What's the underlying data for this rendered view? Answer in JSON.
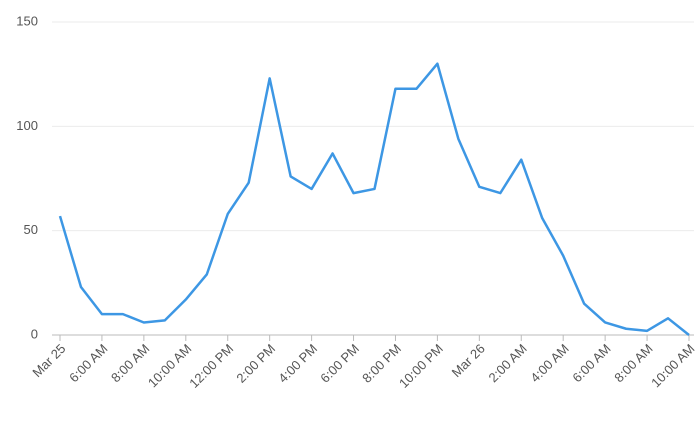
{
  "chart_data": {
    "type": "line",
    "categories": [
      "Mar 25",
      null,
      "6:00 AM",
      null,
      "8:00 AM",
      null,
      "10:00 AM",
      null,
      "12:00 PM",
      null,
      "2:00 PM",
      null,
      "4:00 PM",
      null,
      "6:00 PM",
      null,
      "8:00 PM",
      null,
      "10:00 PM",
      null,
      "Mar 26",
      null,
      "2:00 AM",
      null,
      "4:00 AM",
      null,
      "6:00 AM",
      null,
      "8:00 AM",
      null,
      "10:00 AM"
    ],
    "series": [
      {
        "color": "#3d97e4",
        "values": [
          57,
          23,
          10,
          10,
          6,
          7,
          17,
          29,
          58,
          73,
          123,
          76,
          70,
          87,
          68,
          70,
          118,
          118,
          130,
          94,
          71,
          68,
          84,
          56,
          38,
          15,
          6,
          3,
          2,
          8,
          0
        ]
      }
    ],
    "ylim": [
      0,
      150
    ],
    "yticks": [
      0,
      50,
      100,
      150
    ],
    "grid": true
  }
}
